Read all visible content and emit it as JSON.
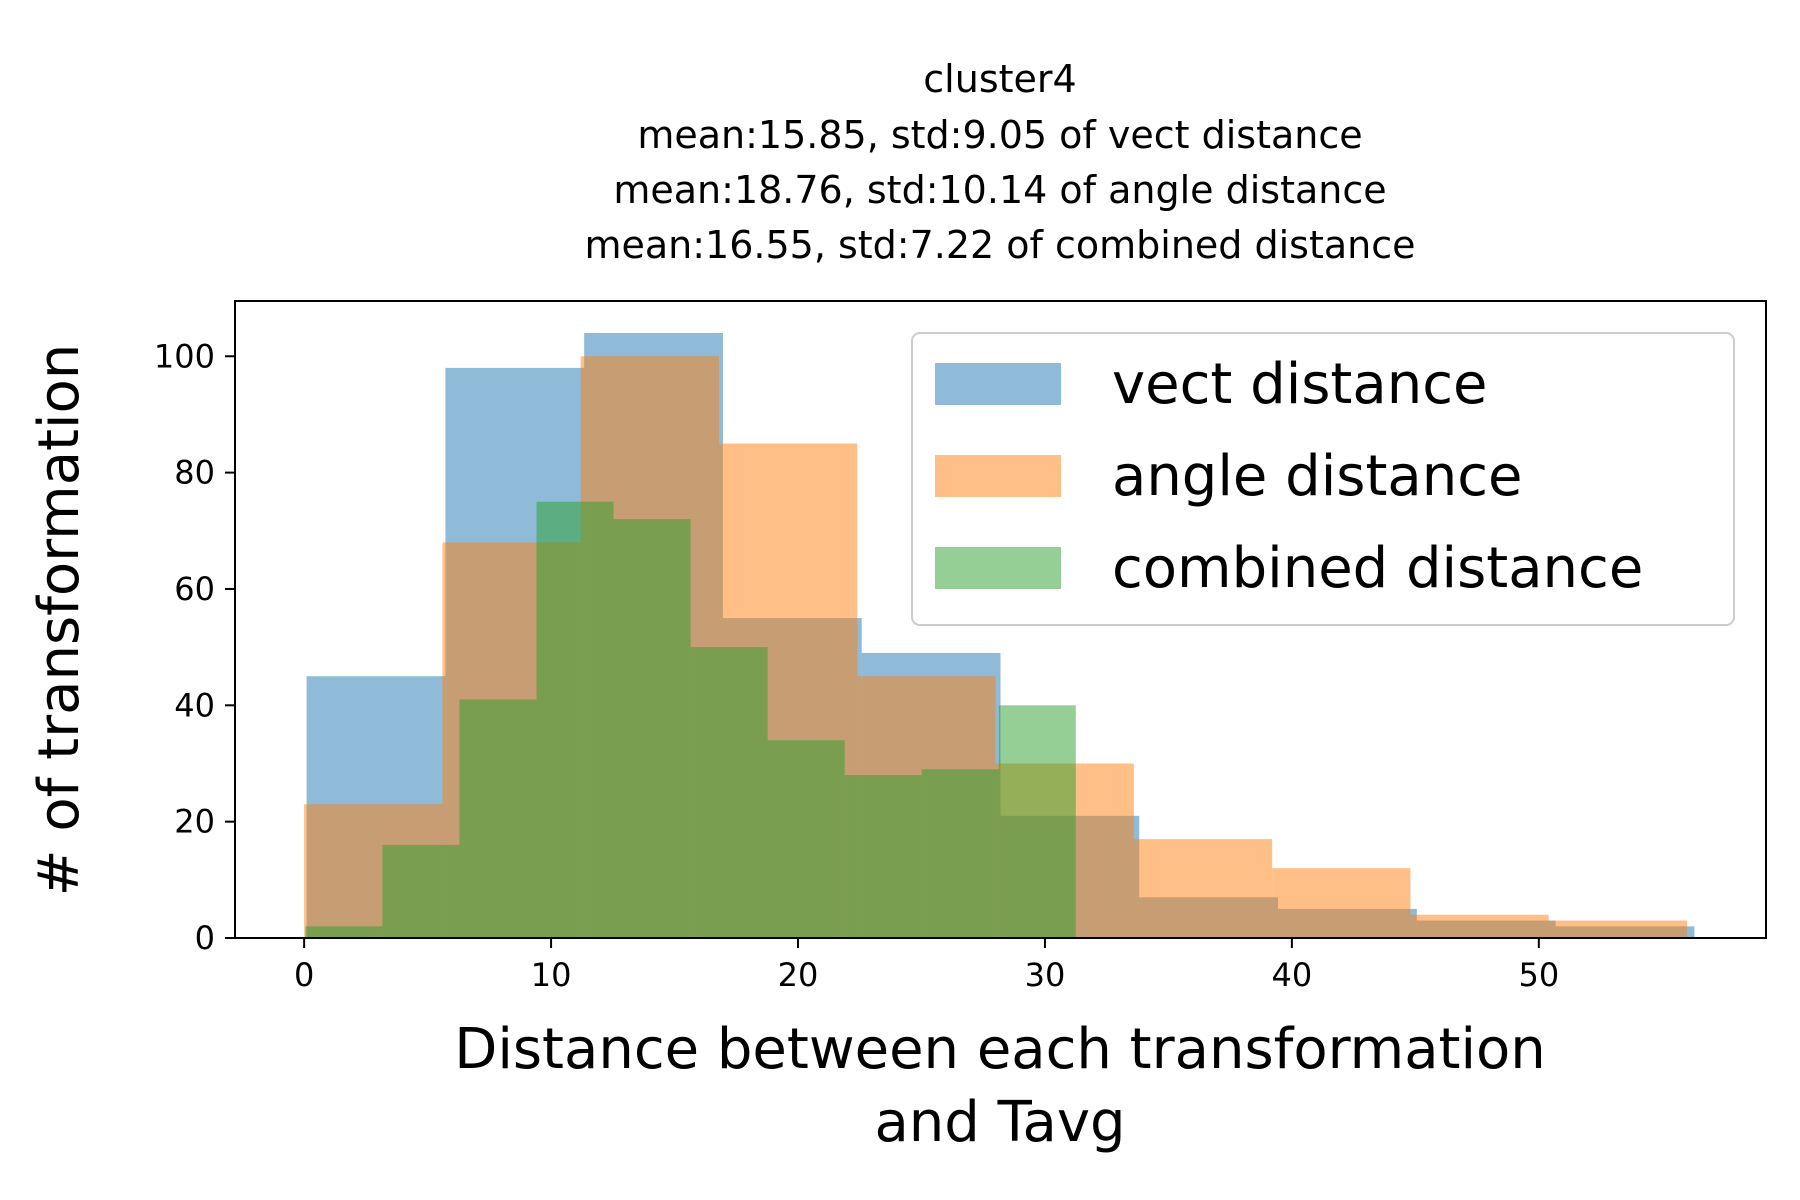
{
  "chart_data": {
    "type": "bar",
    "subtype": "overlapping-histogram",
    "title": "cluster4",
    "subtitle_lines": [
      "mean:15.85, std:9.05 of vect distance",
      "mean:18.76, std:10.14 of angle distance",
      "mean:16.55, std:7.22 of combined distance"
    ],
    "xlabel_lines": [
      "Distance between each transformation",
      "and Tavg"
    ],
    "ylabel": "# of transformation",
    "xlim": [
      -2.8,
      59.2
    ],
    "ylim": [
      0,
      109.5
    ],
    "xticks": [
      0,
      10,
      20,
      30,
      40,
      50
    ],
    "yticks": [
      0,
      20,
      40,
      60,
      80,
      100
    ],
    "grid": false,
    "legend_position": "top-right",
    "series": [
      {
        "name": "vect distance",
        "color": "#1f77b4",
        "opacity": 0.5,
        "bin_edges": [
          0.1,
          5.72,
          11.34,
          16.96,
          22.58,
          28.2,
          33.82,
          39.44,
          45.06,
          50.68,
          56.3
        ],
        "counts": [
          45,
          98,
          104,
          55,
          49,
          21,
          7,
          5,
          3,
          2
        ]
      },
      {
        "name": "angle distance",
        "color": "#ff7f0e",
        "opacity": 0.5,
        "bin_edges": [
          0.0,
          5.6,
          11.2,
          16.8,
          22.4,
          28.0,
          33.6,
          39.2,
          44.8,
          50.4,
          56.0
        ],
        "counts": [
          23,
          68,
          100,
          85,
          45,
          30,
          17,
          12,
          4,
          3
        ]
      },
      {
        "name": "combined distance",
        "color": "#2ca02c",
        "opacity": 0.5,
        "bin_edges": [
          0.05,
          3.17,
          6.29,
          9.41,
          12.53,
          15.65,
          18.77,
          21.89,
          25.01,
          28.13,
          31.25
        ],
        "counts": [
          2,
          16,
          41,
          75,
          72,
          50,
          34,
          28,
          29,
          40
        ]
      }
    ]
  }
}
